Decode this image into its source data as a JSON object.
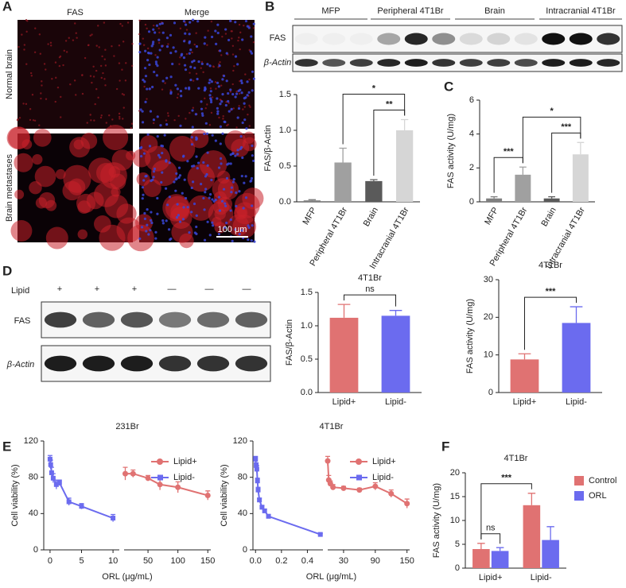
{
  "figure": {
    "panel_letters": [
      "A",
      "B",
      "C",
      "D",
      "E",
      "F"
    ],
    "microscopy": {
      "columns": [
        "FAS",
        "Merge"
      ],
      "rows": [
        "Normal brain",
        "Brain metastases"
      ],
      "scale_bar": "100 μm"
    },
    "blot_b": {
      "groups": [
        "MFP",
        "Peripheral 4T1Br",
        "Brain",
        "Intracranial 4T1Br"
      ],
      "rows": [
        "FAS",
        "β-Actin"
      ]
    },
    "blot_d": {
      "treatment": "Lipid",
      "signs": [
        "+",
        "+",
        "+",
        "—",
        "—",
        "—"
      ],
      "rows": [
        "FAS",
        "β-Actin"
      ]
    }
  },
  "chart_data": [
    {
      "type": "bar",
      "ylabel": "FAS/β-Actin",
      "categories": [
        "MFP",
        "Peripheral 4T1Br",
        "Brain",
        "Intracranial 4T1Br"
      ],
      "values": [
        0.02,
        0.55,
        0.29,
        1.0
      ],
      "errors": [
        0.01,
        0.2,
        0.02,
        0.15
      ],
      "colors": [
        "#7f7f7f",
        "#a0a0a0",
        "#5a5a5a",
        "#d6d6d6"
      ],
      "ylim": [
        0,
        1.5
      ],
      "yticks": [
        {
          "value": 0,
          "label": "0.0"
        },
        {
          "value": 0.5,
          "label": "0.5"
        },
        {
          "value": 1,
          "label": "1.0"
        },
        {
          "value": 1.5,
          "label": "1.5"
        }
      ],
      "annotations": [
        {
          "text": "**",
          "between": [
            "Brain",
            "Intracranial 4T1Br"
          ]
        },
        {
          "text": "*",
          "between": [
            "Peripheral 4T1Br",
            "Intracranial 4T1Br"
          ]
        }
      ]
    },
    {
      "type": "bar",
      "ylabel": "FAS activity (U/mg)",
      "categories": [
        "MFP",
        "Peripheral 4T1Br",
        "Brain",
        "Intracranial 4T1Br"
      ],
      "values": [
        0.2,
        1.6,
        0.2,
        2.8
      ],
      "errors": [
        0.1,
        0.45,
        0.1,
        0.7
      ],
      "colors": [
        "#7f7f7f",
        "#a0a0a0",
        "#5a5a5a",
        "#d6d6d6"
      ],
      "ylim": [
        0,
        6
      ],
      "yticks": [
        0,
        2,
        4,
        6
      ],
      "annotations": [
        {
          "text": "***",
          "between": [
            "MFP",
            "Peripheral 4T1Br"
          ]
        },
        {
          "text": "***",
          "between": [
            "Brain",
            "Intracranial 4T1Br"
          ]
        },
        {
          "text": "*",
          "between": [
            "Peripheral 4T1Br",
            "Intracranial 4T1Br"
          ]
        }
      ]
    },
    {
      "type": "bar",
      "title": "4T1Br",
      "ylabel": "FAS/β-Actin",
      "categories": [
        "Lipid+",
        "Lipid-"
      ],
      "values": [
        1.12,
        1.15
      ],
      "errors": [
        0.2,
        0.08
      ],
      "colors": [
        "#e07272",
        "#6b6bef"
      ],
      "ylim": [
        0,
        1.5
      ],
      "yticks": [
        {
          "value": 0,
          "label": "0.0"
        },
        {
          "value": 0.5,
          "label": "0.5"
        },
        {
          "value": 1,
          "label": "1.0"
        },
        {
          "value": 1.5,
          "label": "1.5"
        }
      ],
      "annotations": [
        {
          "text": "ns",
          "between": [
            "Lipid+",
            "Lipid-"
          ]
        }
      ]
    },
    {
      "type": "bar",
      "title": "4T1Br",
      "ylabel": "FAS activity (U/mg)",
      "categories": [
        "Lipid+",
        "Lipid-"
      ],
      "values": [
        8.8,
        18.5
      ],
      "errors": [
        1.5,
        4.3
      ],
      "colors": [
        "#e07272",
        "#6b6bef"
      ],
      "ylim": [
        0,
        30
      ],
      "yticks": [
        0,
        10,
        20,
        30
      ],
      "annotations": [
        {
          "text": "***",
          "between": [
            "Lipid+",
            "Lipid-"
          ]
        }
      ]
    },
    {
      "type": "line",
      "title": "231Br",
      "xlabel": "ORL (μg/mL)",
      "ylabel": "Cell viability (%)",
      "ylim": [
        0,
        120
      ],
      "yticks": [
        0,
        40,
        80,
        120
      ],
      "series": [
        {
          "name": "Lipid+",
          "color": "#e07272",
          "marker": "circle",
          "xlim": [
            10,
            155
          ],
          "xticks": [
            50,
            100,
            150
          ],
          "x": [
            12,
            25,
            50,
            70,
            100,
            150
          ],
          "values": [
            84,
            84,
            79,
            72,
            69,
            60
          ],
          "errors": [
            7,
            4,
            3,
            6,
            6,
            5
          ]
        },
        {
          "name": "Lipid-",
          "color": "#6b6bef",
          "marker": "square",
          "xlim": [
            -1,
            11
          ],
          "xticks": [
            0,
            5,
            10
          ],
          "x": [
            0,
            0.1,
            0.25,
            0.5,
            1,
            1.5,
            3,
            5,
            10
          ],
          "values": [
            100,
            94,
            85,
            79,
            72,
            74,
            53,
            48,
            35
          ],
          "errors": [
            4,
            5,
            6,
            5,
            5,
            3,
            4,
            3,
            4
          ]
        }
      ]
    },
    {
      "type": "line",
      "title": "4T1Br",
      "xlabel": "ORL (μg/mL)",
      "ylabel": "Cell viability (%)",
      "ylim": [
        0,
        120
      ],
      "yticks": [
        0,
        40,
        80,
        120
      ],
      "series": [
        {
          "name": "Lipid+",
          "color": "#e07272",
          "marker": "circle",
          "xlim": [
            0,
            155
          ],
          "xticks": [
            30,
            90,
            150
          ],
          "x": [
            0,
            2,
            5,
            10,
            30,
            60,
            90,
            120,
            150
          ],
          "values": [
            98,
            77,
            73,
            69,
            68,
            66,
            70,
            62,
            51
          ],
          "errors": [
            5,
            5,
            3,
            3,
            2,
            2,
            4,
            4,
            5
          ]
        },
        {
          "name": "Lipid-",
          "color": "#6b6bef",
          "marker": "square",
          "xlim": [
            -0.02,
            0.52
          ],
          "xticks": [
            {
              "value": 0,
              "label": "0.0"
            },
            {
              "value": 0.2,
              "label": "0.2"
            },
            {
              "value": 0.4,
              "label": "0.4"
            }
          ],
          "x": [
            0,
            0.005,
            0.01,
            0.015,
            0.02,
            0.03,
            0.05,
            0.07,
            0.1,
            0.5
          ],
          "values": [
            100,
            93,
            89,
            76,
            66,
            55,
            47,
            43,
            37,
            17
          ],
          "errors": [
            3,
            3,
            4,
            3,
            3,
            2,
            2,
            2,
            2,
            1
          ]
        }
      ]
    },
    {
      "type": "bar",
      "title": "4T1Br",
      "ylabel": "FAS activity (U/mg)",
      "categories": [
        "Lipid+",
        "Lipid-"
      ],
      "ylim": [
        0,
        20
      ],
      "yticks": [
        0,
        5,
        10,
        15,
        20
      ],
      "series": [
        {
          "name": "Control",
          "color": "#e07272",
          "values": [
            4.0,
            13.2
          ],
          "errors": [
            1.2,
            2.5
          ]
        },
        {
          "name": "ORL",
          "color": "#6b6bef",
          "values": [
            3.6,
            5.9
          ],
          "errors": [
            0.7,
            2.8
          ]
        }
      ],
      "annotations": [
        {
          "text": "ns",
          "between": [
            {
              "category": "Lipid+",
              "series": "Control"
            },
            {
              "category": "Lipid+",
              "series": "ORL"
            }
          ]
        },
        {
          "text": "***",
          "between": [
            {
              "category": "Lipid+",
              "series": "Control"
            },
            {
              "category": "Lipid-",
              "series": "Control"
            }
          ]
        }
      ]
    }
  ]
}
